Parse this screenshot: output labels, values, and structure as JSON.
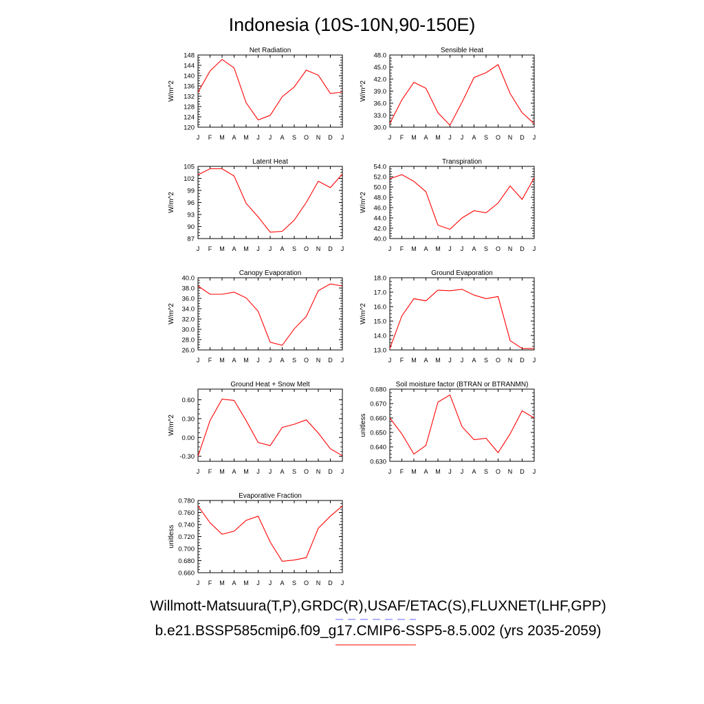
{
  "title": "Indonesia (10S-10N,90-150E)",
  "legend": {
    "obs_label": "Willmott-Matsuura(T,P),GRDC(R),USAF/ETAC(S),FLUXNET(LHF,GPP)",
    "obs_color": "#6464ff",
    "model_label": "b.e21.BSSP585cmip6.f09_g17.CMIP6-SSP5-8.5.002 (yrs 2035-2059)",
    "model_color": "#ff0000"
  },
  "chart_data": [
    {
      "type": "line",
      "title": "Net Radiation",
      "ylabel": "W/m^2",
      "x": [
        "J",
        "F",
        "M",
        "A",
        "M",
        "J",
        "J",
        "A",
        "S",
        "O",
        "N",
        "D",
        "J"
      ],
      "ylim": [
        120,
        148
      ],
      "yticks": [
        "120",
        "124",
        "128",
        "132",
        "136",
        "140",
        "144",
        "148"
      ],
      "series": [
        {
          "color": "#ff0000",
          "values": [
            133.5,
            141.8,
            146.3,
            143.0,
            129.5,
            122.8,
            124.6,
            131.8,
            135.6,
            142.1,
            140.2,
            133.1,
            133.6
          ]
        }
      ]
    },
    {
      "type": "line",
      "title": "Sensible Heat",
      "ylabel": "W/m^2",
      "x": [
        "J",
        "F",
        "M",
        "A",
        "M",
        "J",
        "J",
        "A",
        "S",
        "O",
        "N",
        "D",
        "J"
      ],
      "ylim": [
        30,
        48
      ],
      "yticks": [
        "30.0",
        "33.0",
        "36.0",
        "39.0",
        "42.0",
        "45.0",
        "48.0"
      ],
      "series": [
        {
          "color": "#ff0000",
          "values": [
            30.9,
            36.8,
            41.2,
            39.7,
            33.6,
            30.5,
            36.2,
            42.4,
            43.6,
            45.6,
            38.4,
            33.6,
            30.9
          ]
        }
      ]
    },
    {
      "type": "line",
      "title": "Latent Heat",
      "ylabel": "W/m^2",
      "x": [
        "J",
        "F",
        "M",
        "A",
        "M",
        "J",
        "J",
        "A",
        "S",
        "O",
        "N",
        "D",
        "J"
      ],
      "ylim": [
        87,
        105
      ],
      "yticks": [
        "87",
        "90",
        "93",
        "96",
        "99",
        "102",
        "105"
      ],
      "series": [
        {
          "color": "#ff0000",
          "values": [
            102.9,
            104.4,
            104.4,
            102.6,
            95.8,
            92.4,
            88.6,
            88.8,
            91.6,
            96.0,
            101.3,
            99.7,
            103.1
          ]
        }
      ]
    },
    {
      "type": "line",
      "title": "Transpiration",
      "ylabel": "W/m^2",
      "x": [
        "J",
        "F",
        "M",
        "A",
        "M",
        "J",
        "J",
        "A",
        "S",
        "O",
        "N",
        "D",
        "J"
      ],
      "ylim": [
        40,
        54
      ],
      "yticks": [
        "40.0",
        "42.0",
        "44.0",
        "46.0",
        "48.0",
        "50.0",
        "52.0",
        "54.0"
      ],
      "series": [
        {
          "color": "#ff0000",
          "values": [
            51.6,
            52.4,
            51.1,
            49.1,
            42.6,
            41.8,
            44.0,
            45.4,
            45.0,
            46.9,
            50.2,
            47.6,
            51.8
          ]
        }
      ]
    },
    {
      "type": "line",
      "title": "Canopy Evaporation",
      "ylabel": "W/m^2",
      "x": [
        "J",
        "F",
        "M",
        "A",
        "M",
        "J",
        "J",
        "A",
        "S",
        "O",
        "N",
        "D",
        "J"
      ],
      "ylim": [
        26,
        40
      ],
      "yticks": [
        "26.0",
        "28.0",
        "30.0",
        "32.0",
        "34.0",
        "36.0",
        "38.0",
        "40.0"
      ],
      "series": [
        {
          "color": "#ff0000",
          "values": [
            38.4,
            36.8,
            36.8,
            37.2,
            36.1,
            33.5,
            27.5,
            26.9,
            30.1,
            32.5,
            37.5,
            38.8,
            38.4
          ]
        }
      ]
    },
    {
      "type": "line",
      "title": "Ground Evaporation",
      "ylabel": "W/m^2",
      "x": [
        "J",
        "F",
        "M",
        "A",
        "M",
        "J",
        "J",
        "A",
        "S",
        "O",
        "N",
        "D",
        "J"
      ],
      "ylim": [
        13,
        18
      ],
      "yticks": [
        "13.0",
        "14.0",
        "15.0",
        "16.0",
        "17.0",
        "18.0"
      ],
      "series": [
        {
          "color": "#ff0000",
          "values": [
            13.1,
            15.35,
            16.55,
            16.4,
            17.15,
            17.1,
            17.2,
            16.8,
            16.55,
            16.7,
            13.65,
            13.1,
            13.1
          ]
        }
      ]
    },
    {
      "type": "line",
      "title": "Ground Heat + Snow Melt",
      "ylabel": "W/m^2",
      "x": [
        "J",
        "F",
        "M",
        "A",
        "M",
        "J",
        "J",
        "A",
        "S",
        "O",
        "N",
        "D",
        "J"
      ],
      "ylim": [
        -0.38,
        0.77
      ],
      "yticks": [
        "-0.30",
        "0.00",
        "0.30",
        "0.60"
      ],
      "ytick_values": [
        -0.3,
        0.0,
        0.3,
        0.6
      ],
      "series": [
        {
          "color": "#ff0000",
          "values": [
            -0.3,
            0.27,
            0.61,
            0.59,
            0.27,
            -0.08,
            -0.13,
            0.16,
            0.21,
            0.28,
            0.07,
            -0.18,
            -0.29
          ]
        }
      ]
    },
    {
      "type": "line",
      "title": "Soil moisture factor (BTRAN or BTRANMN)",
      "ylabel": "unitless",
      "x": [
        "J",
        "F",
        "M",
        "A",
        "M",
        "J",
        "J",
        "A",
        "S",
        "O",
        "N",
        "D",
        "J"
      ],
      "ylim": [
        0.63,
        0.68
      ],
      "yticks": [
        "0.630",
        "0.640",
        "0.650",
        "0.660",
        "0.670",
        "0.680"
      ],
      "series": [
        {
          "color": "#ff0000",
          "values": [
            0.66,
            0.649,
            0.635,
            0.641,
            0.671,
            0.676,
            0.654,
            0.645,
            0.646,
            0.636,
            0.649,
            0.665,
            0.66
          ]
        }
      ]
    },
    {
      "type": "line",
      "title": "Evaporative Fraction",
      "ylabel": "unitless",
      "x": [
        "J",
        "F",
        "M",
        "A",
        "M",
        "J",
        "J",
        "A",
        "S",
        "O",
        "N",
        "D",
        "J"
      ],
      "ylim": [
        0.66,
        0.78
      ],
      "yticks": [
        "0.660",
        "0.680",
        "0.700",
        "0.720",
        "0.740",
        "0.760",
        "0.780"
      ],
      "series": [
        {
          "color": "#ff0000",
          "values": [
            0.771,
            0.743,
            0.724,
            0.729,
            0.747,
            0.754,
            0.711,
            0.679,
            0.681,
            0.685,
            0.734,
            0.754,
            0.771
          ]
        }
      ]
    }
  ]
}
